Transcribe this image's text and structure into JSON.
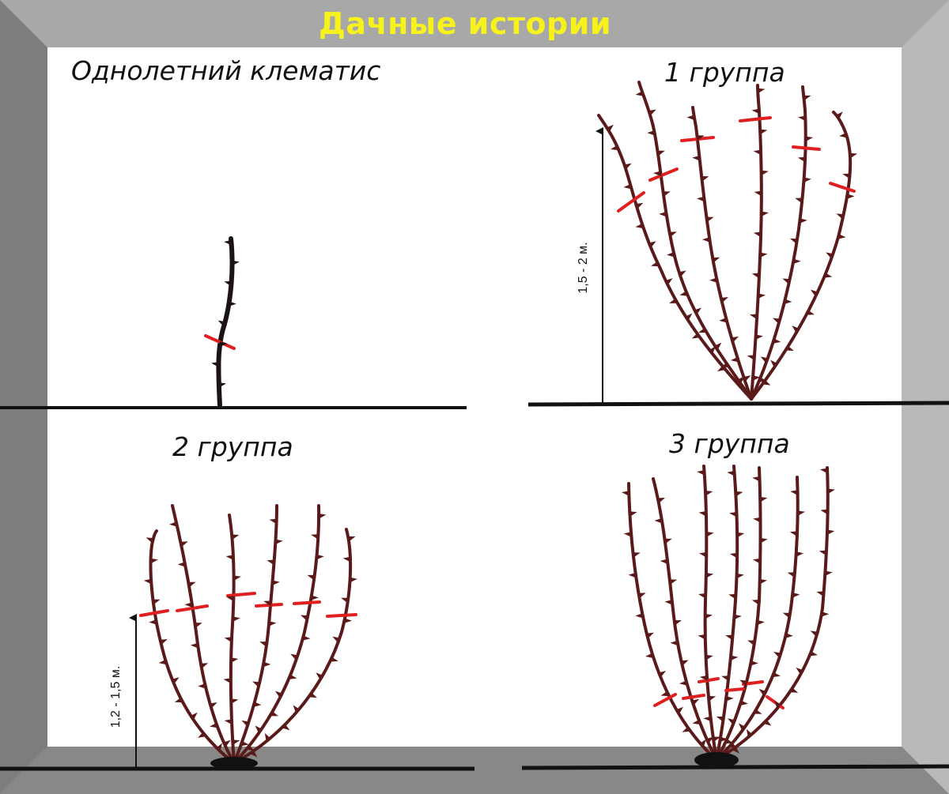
{
  "banner": "Дачные истории",
  "panels": {
    "annual": {
      "title": "Однолетний клематис"
    },
    "group1": {
      "title": "1 группа",
      "height": "1,5 - 2 м."
    },
    "group2": {
      "title": "2 группа",
      "height": "1,2 - 1,5 м."
    },
    "group3": {
      "title": "3 группа"
    }
  },
  "colors": {
    "banner": "#f7f21c",
    "stem": "#5a1a1a",
    "cut": "#e02020",
    "ground": "#111111",
    "frame": "#9a9a9a"
  }
}
